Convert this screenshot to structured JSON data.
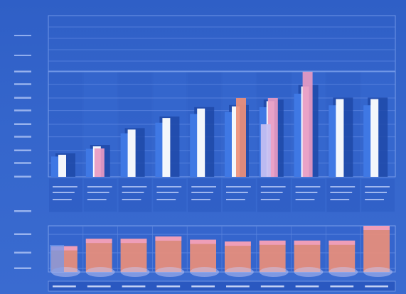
{
  "chart_data": [
    {
      "type": "bar",
      "title": "",
      "xlabel": "",
      "ylabel": "",
      "categories": [
        "",
        "",
        "",
        "",
        "",
        "",
        "",
        "",
        "",
        ""
      ],
      "ylim": [
        0,
        100
      ],
      "grid": true,
      "colors": [
        "#ffffff",
        "#e89ac2",
        "#ee8f78",
        "#c7c0f2",
        "#3c75e0"
      ],
      "series": [
        {
          "values": [
            21,
            29,
            45,
            56,
            65,
            67,
            72,
            86,
            74,
            74
          ]
        },
        {
          "values": [
            0,
            27,
            0,
            0,
            0,
            0,
            75,
            100,
            0,
            0
          ]
        },
        {
          "values": [
            0,
            0,
            0,
            0,
            0,
            75,
            0,
            0,
            0,
            0
          ]
        },
        {
          "values": [
            0,
            0,
            0,
            0,
            0,
            0,
            50,
            0,
            0,
            0
          ]
        }
      ]
    },
    {
      "type": "bar",
      "title": "",
      "categories": [
        "",
        "",
        "",
        "",
        "",
        "",
        "",
        "",
        "",
        ""
      ],
      "ylim": [
        0,
        100
      ],
      "grid": true,
      "series": [
        {
          "values": [
            56,
            72,
            72,
            77,
            70,
            66,
            68,
            68,
            68,
            100
          ]
        }
      ]
    }
  ]
}
